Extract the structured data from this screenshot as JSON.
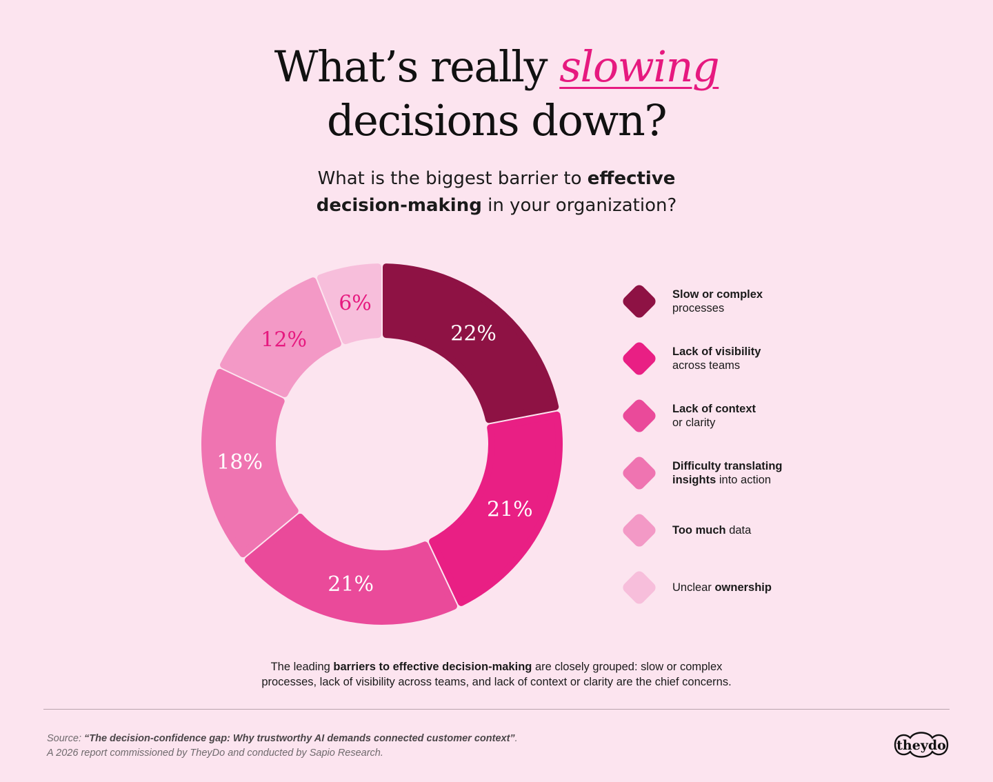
{
  "title": {
    "line1_prefix": "What’s really ",
    "line1_accent": "slowing",
    "line2": "decisions down?"
  },
  "question": {
    "part1": "What is the biggest barrier to ",
    "bold1": "effective",
    "bold2": "decision-making",
    "part2": " in your organization?"
  },
  "chart_data": {
    "type": "pie",
    "variant": "donut",
    "categories": [
      "Slow or complex processes",
      "Lack of visibility across teams",
      "Lack of context or clarity",
      "Difficulty translating insights into action",
      "Too much data",
      "Unclear ownership"
    ],
    "values": [
      22,
      21,
      21,
      18,
      12,
      6
    ],
    "labels": [
      "22%",
      "21%",
      "21%",
      "18%",
      "12%",
      "6%"
    ],
    "colors": [
      "#8e1244",
      "#e91f84",
      "#ea4a9a",
      "#ef74b1",
      "#f399c6",
      "#f7bedb"
    ],
    "label_colors": [
      "#ffffff",
      "#ffffff",
      "#ffffff",
      "#ffffff",
      "#e6197f",
      "#e6197f"
    ],
    "legend_position": "right"
  },
  "legend": [
    {
      "bold": "Slow or complex",
      "normal": "processes",
      "layout": "bold-first-two-line"
    },
    {
      "bold": "Lack of visibility",
      "normal": "across teams",
      "layout": "bold-first-two-line"
    },
    {
      "bold": "Lack of context",
      "normal": "or clarity",
      "layout": "bold-first-two-line"
    },
    {
      "bold": "Difficulty translating",
      "normal": "insights into action",
      "layout": "bold-partial",
      "bold2": "insights"
    },
    {
      "bold": "Too much",
      "normal": " data",
      "layout": "bold-first-inline"
    },
    {
      "bold": "ownership",
      "normal": "Unclear ",
      "layout": "normal-first-inline"
    }
  ],
  "summary": {
    "part1": "The leading ",
    "bold": "barriers to effective decision-making",
    "part2": " are closely grouped: slow or complex",
    "line2": "processes, lack of visibility across teams, and lack of context or clarity are the chief concerns."
  },
  "source": {
    "prefix": "Source: ",
    "title": "“The decision-confidence gap: Why trustworthy AI demands connected customer context”",
    "suffix": ".",
    "line2": "A 2026 report commissioned by TheyDo and conducted by Sapio Research."
  },
  "logo": {
    "text": "theydo"
  }
}
